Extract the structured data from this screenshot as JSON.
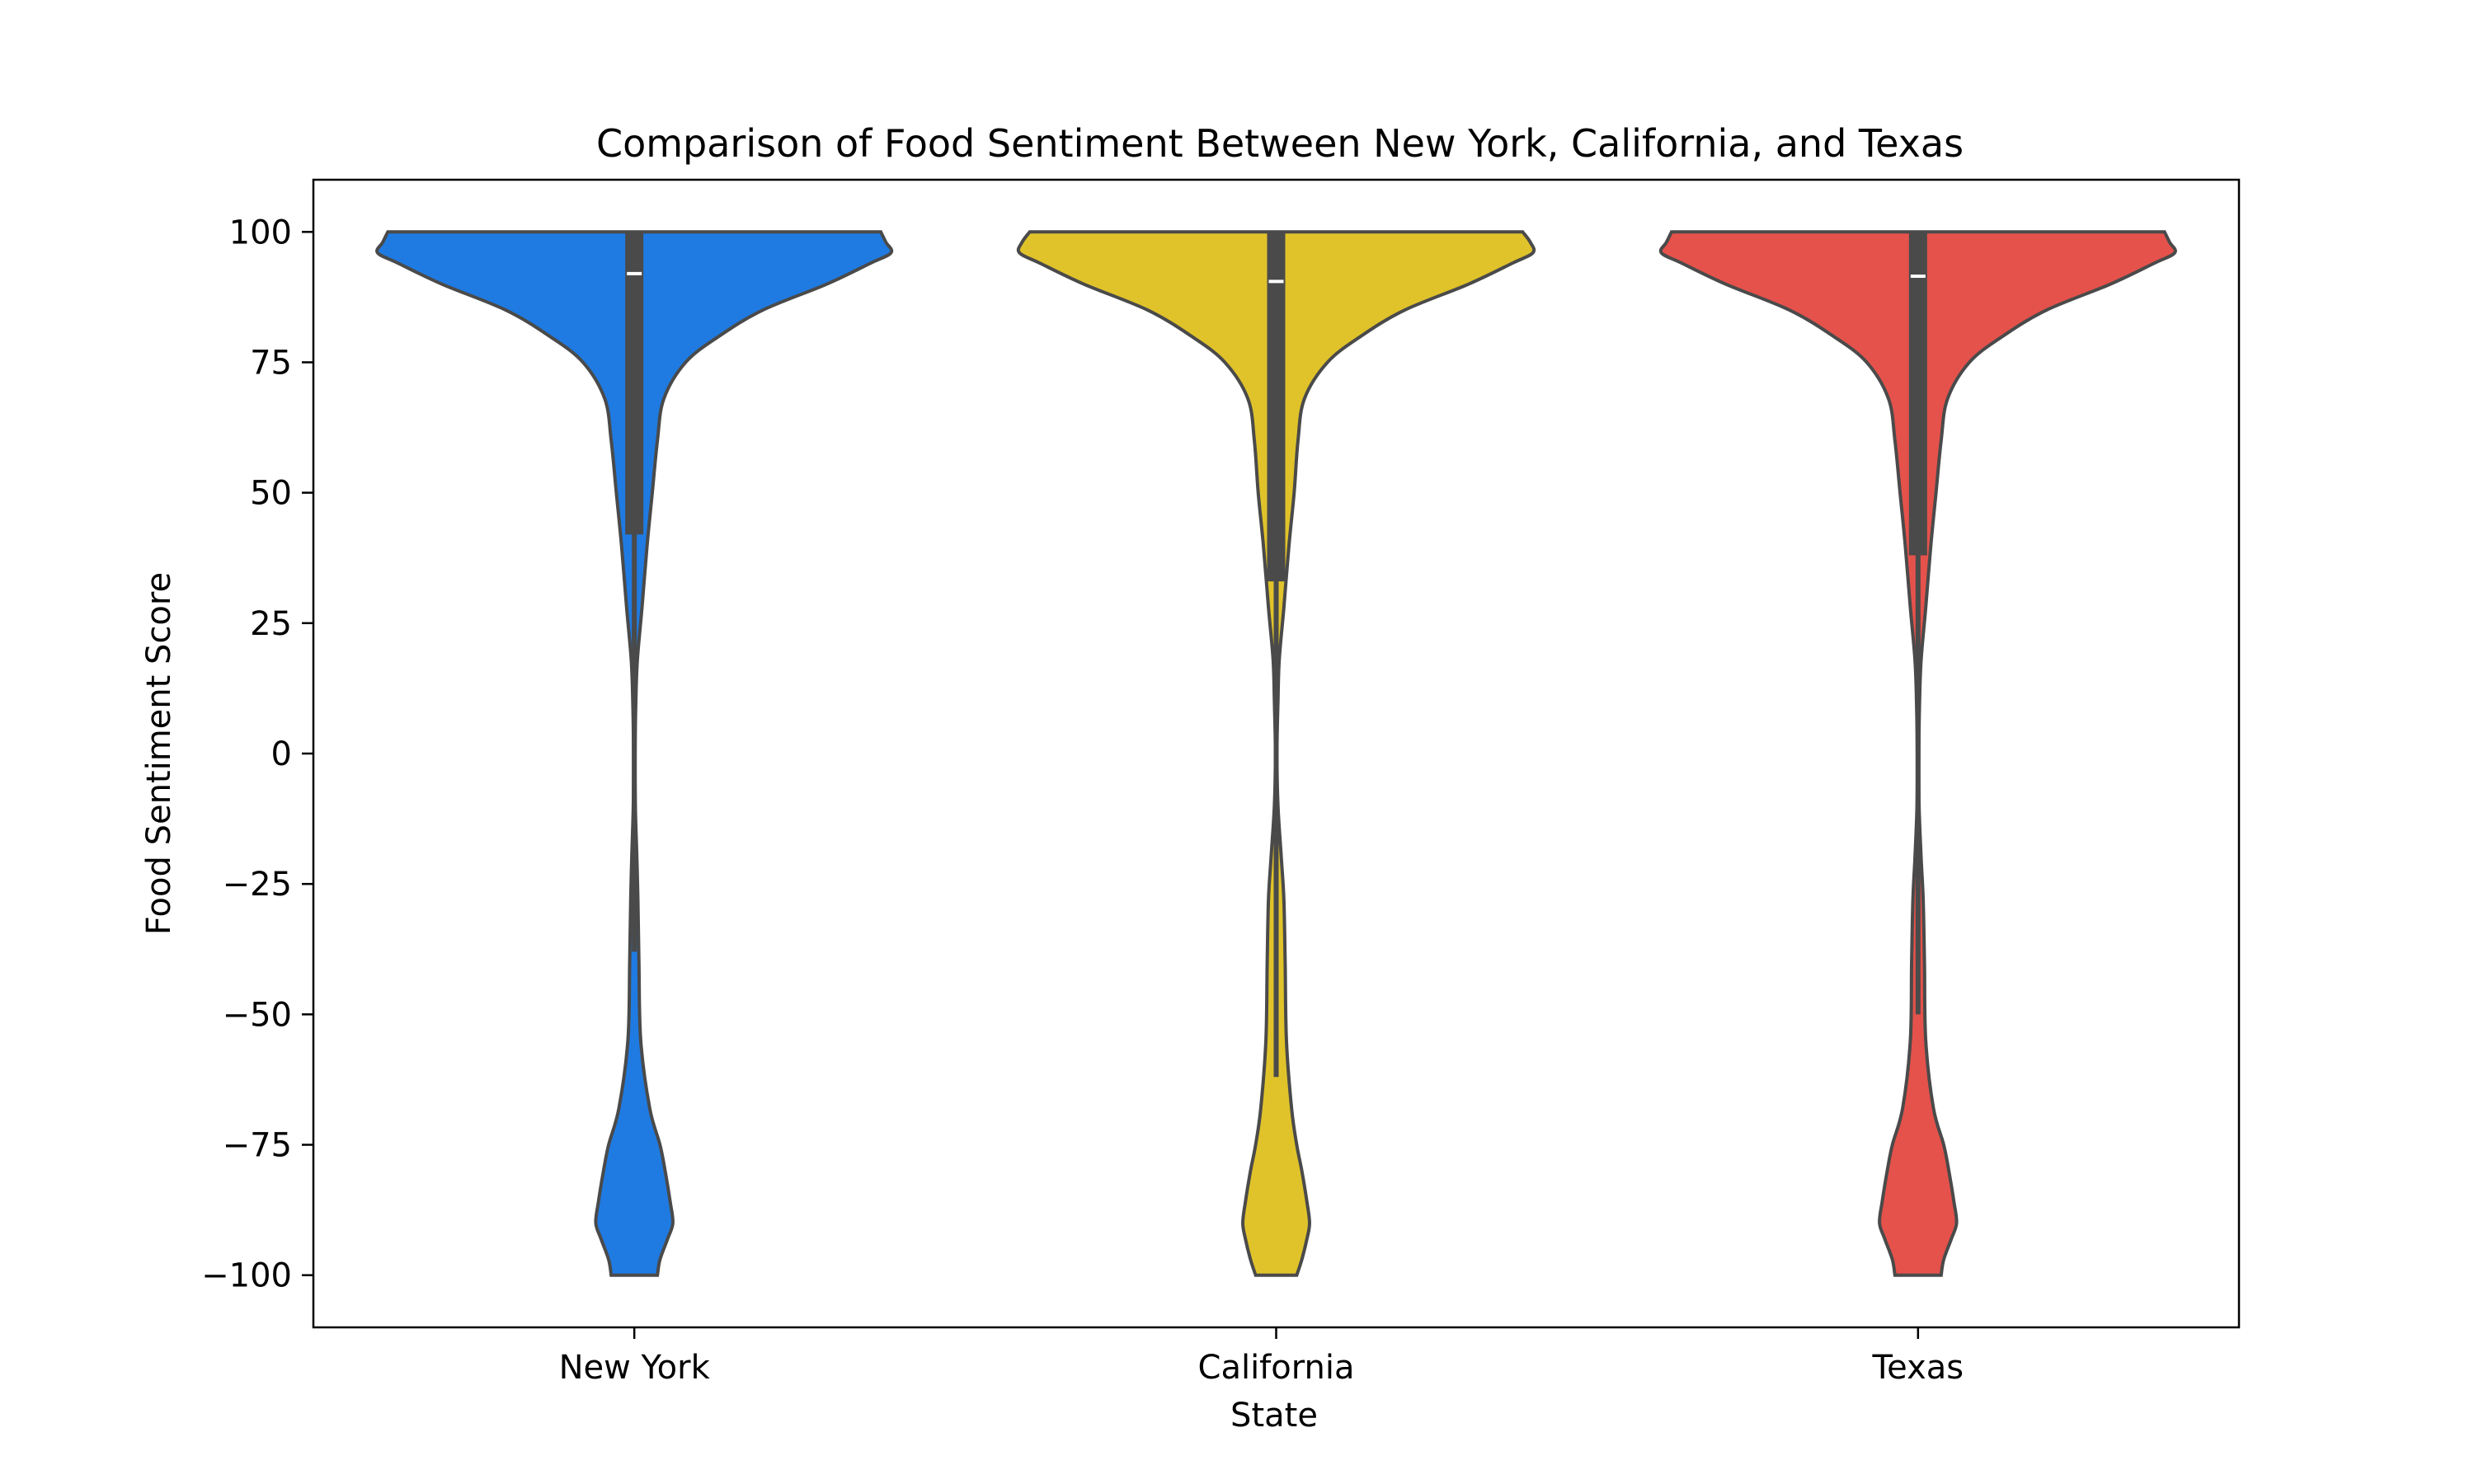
{
  "chart_data": {
    "type": "violin",
    "title": "Comparison of Food Sentiment Between New York, California, and Texas",
    "xlabel": "State",
    "ylabel": "Food Sentiment Score",
    "ylim": [
      -110,
      110
    ],
    "yticks": [
      100,
      75,
      50,
      25,
      0,
      -25,
      -50,
      -75,
      -100
    ],
    "ytick_labels": [
      "100",
      "75",
      "50",
      "25",
      "0",
      "−25",
      "−50",
      "−75",
      "−100"
    ],
    "categories": [
      "New York",
      "California",
      "Texas"
    ],
    "grid": false,
    "legend": "none",
    "colors": {
      "New York": "#1f7be2",
      "California": "#e0c32a",
      "Texas": "#e5524b",
      "outline": "#4a4a4a",
      "median": "#ffffff"
    },
    "series": [
      {
        "category": "New York",
        "range": [
          -100,
          100
        ],
        "median": 92,
        "q1": 42,
        "q3": 100,
        "whisker_low": -38,
        "whisker_high": 100,
        "density_halfwidth": [
          [
            -100,
            0.09
          ],
          [
            -97,
            0.1
          ],
          [
            -93,
            0.13
          ],
          [
            -90,
            0.15
          ],
          [
            -86,
            0.14
          ],
          [
            -80,
            0.12
          ],
          [
            -75,
            0.1
          ],
          [
            -68,
            0.06
          ],
          [
            -55,
            0.025
          ],
          [
            -40,
            0.018
          ],
          [
            -28,
            0.014
          ],
          [
            -20,
            0.01
          ],
          [
            -10,
            0.004
          ],
          [
            0,
            0.003
          ],
          [
            10,
            0.006
          ],
          [
            18,
            0.012
          ],
          [
            28,
            0.03
          ],
          [
            40,
            0.05
          ],
          [
            50,
            0.07
          ],
          [
            60,
            0.09
          ],
          [
            68,
            0.115
          ],
          [
            75,
            0.2
          ],
          [
            80,
            0.33
          ],
          [
            85,
            0.5
          ],
          [
            90,
            0.75
          ],
          [
            94,
            0.92
          ],
          [
            96,
            1.0
          ],
          [
            98,
            0.98
          ],
          [
            100,
            0.96
          ]
        ]
      },
      {
        "category": "California",
        "range": [
          -100,
          100
        ],
        "median": 90.5,
        "q1": 33,
        "q3": 100,
        "whisker_low": -62,
        "whisker_high": 100,
        "density_halfwidth": [
          [
            -100,
            0.08
          ],
          [
            -97,
            0.1
          ],
          [
            -93,
            0.12
          ],
          [
            -90,
            0.13
          ],
          [
            -86,
            0.12
          ],
          [
            -80,
            0.1
          ],
          [
            -75,
            0.08
          ],
          [
            -68,
            0.06
          ],
          [
            -55,
            0.04
          ],
          [
            -40,
            0.035
          ],
          [
            -28,
            0.03
          ],
          [
            -20,
            0.02
          ],
          [
            -10,
            0.007
          ],
          [
            0,
            0.003
          ],
          [
            10,
            0.007
          ],
          [
            18,
            0.012
          ],
          [
            28,
            0.03
          ],
          [
            40,
            0.05
          ],
          [
            50,
            0.07
          ],
          [
            60,
            0.085
          ],
          [
            68,
            0.11
          ],
          [
            75,
            0.2
          ],
          [
            80,
            0.33
          ],
          [
            85,
            0.5
          ],
          [
            90,
            0.75
          ],
          [
            94,
            0.92
          ],
          [
            96,
            1.0
          ],
          [
            98,
            0.99
          ],
          [
            100,
            0.96
          ]
        ]
      },
      {
        "category": "Texas",
        "range": [
          -100,
          100
        ],
        "median": 91.5,
        "q1": 38,
        "q3": 100,
        "whisker_low": -50,
        "whisker_high": 100,
        "density_halfwidth": [
          [
            -100,
            0.09
          ],
          [
            -97,
            0.1
          ],
          [
            -93,
            0.13
          ],
          [
            -90,
            0.15
          ],
          [
            -86,
            0.14
          ],
          [
            -80,
            0.12
          ],
          [
            -75,
            0.1
          ],
          [
            -68,
            0.06
          ],
          [
            -55,
            0.03
          ],
          [
            -40,
            0.025
          ],
          [
            -28,
            0.02
          ],
          [
            -20,
            0.012
          ],
          [
            -10,
            0.004
          ],
          [
            0,
            0.003
          ],
          [
            10,
            0.006
          ],
          [
            18,
            0.012
          ],
          [
            28,
            0.03
          ],
          [
            40,
            0.05
          ],
          [
            50,
            0.07
          ],
          [
            60,
            0.09
          ],
          [
            68,
            0.115
          ],
          [
            75,
            0.2
          ],
          [
            80,
            0.33
          ],
          [
            85,
            0.5
          ],
          [
            90,
            0.75
          ],
          [
            94,
            0.92
          ],
          [
            96,
            1.0
          ],
          [
            98,
            0.98
          ],
          [
            100,
            0.96
          ]
        ]
      }
    ]
  }
}
